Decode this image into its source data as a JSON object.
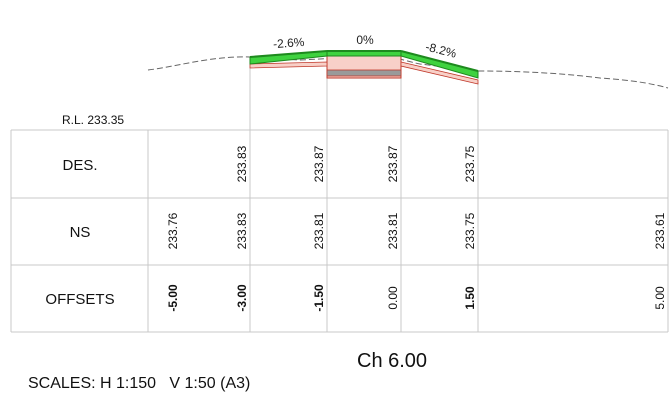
{
  "reduced_level_label": "R.L. 233.35",
  "grades": [
    "-2.6%",
    "0%",
    "-8.2%"
  ],
  "rows": [
    {
      "label": "DES.",
      "values": [
        "",
        "233.83",
        "233.87",
        "233.87",
        "233.75",
        ""
      ]
    },
    {
      "label": "NS",
      "values": [
        "233.76",
        "233.83",
        "233.81",
        "233.81",
        "233.75",
        "233.61"
      ]
    },
    {
      "label": "OFFSETS",
      "values": [
        "-5.00",
        "-3.00",
        "-1.50",
        "0.00",
        "1.50",
        "5.00"
      ]
    }
  ],
  "chainage": "Ch 6.00",
  "scales": "SCALES: H 1:150   V 1:50 (A3)",
  "colors": {
    "pavement_green": "#3fd23f",
    "pavement_edge": "#1e8a1e",
    "subgrade_fill": "#f8d0c8",
    "subgrade_edge": "#c0392b",
    "grey_layer": "#9a9a9a",
    "grid": "#c9c9c9",
    "ground": "#666666"
  }
}
